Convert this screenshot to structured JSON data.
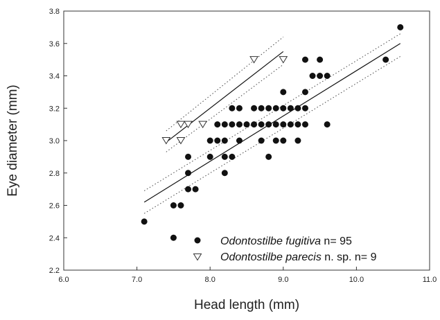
{
  "chart_data": {
    "type": "scatter",
    "title": "",
    "xlabel": "Head length (mm)",
    "ylabel": "Eye diameter (mm)",
    "xlim": [
      6.0,
      11.0
    ],
    "ylim": [
      2.2,
      3.8
    ],
    "x_ticks": [
      "6.0",
      "7.0",
      "8.0",
      "9.0",
      "10.0",
      "11.0"
    ],
    "y_ticks": [
      "2.2",
      "2.4",
      "2.6",
      "2.8",
      "3.0",
      "3.2",
      "3.4",
      "3.6",
      "3.8"
    ],
    "grid": false,
    "legend_position": "bottom-right",
    "series": [
      {
        "name_italic": "Odontostilbe fugitiva",
        "name_suffix": " n= 95",
        "marker": "filled-circle",
        "color": "#111111",
        "points": [
          [
            7.1,
            2.5
          ],
          [
            7.5,
            2.4
          ],
          [
            7.5,
            2.6
          ],
          [
            7.6,
            2.6
          ],
          [
            7.7,
            2.7
          ],
          [
            7.7,
            2.8
          ],
          [
            7.7,
            2.9
          ],
          [
            7.8,
            2.7
          ],
          [
            8.0,
            2.9
          ],
          [
            8.0,
            3.0
          ],
          [
            8.1,
            3.0
          ],
          [
            8.1,
            3.1
          ],
          [
            8.2,
            2.8
          ],
          [
            8.2,
            2.9
          ],
          [
            8.2,
            3.0
          ],
          [
            8.2,
            3.1
          ],
          [
            8.3,
            2.9
          ],
          [
            8.3,
            3.1
          ],
          [
            8.3,
            3.2
          ],
          [
            8.4,
            3.0
          ],
          [
            8.4,
            3.1
          ],
          [
            8.4,
            3.2
          ],
          [
            8.5,
            3.1
          ],
          [
            8.6,
            3.1
          ],
          [
            8.6,
            3.2
          ],
          [
            8.7,
            3.0
          ],
          [
            8.7,
            3.1
          ],
          [
            8.7,
            3.2
          ],
          [
            8.8,
            2.9
          ],
          [
            8.8,
            3.1
          ],
          [
            8.8,
            3.2
          ],
          [
            8.9,
            3.0
          ],
          [
            8.9,
            3.1
          ],
          [
            8.9,
            3.2
          ],
          [
            9.0,
            3.0
          ],
          [
            9.0,
            3.1
          ],
          [
            9.0,
            3.2
          ],
          [
            9.0,
            3.3
          ],
          [
            9.1,
            3.1
          ],
          [
            9.1,
            3.2
          ],
          [
            9.2,
            3.0
          ],
          [
            9.2,
            3.1
          ],
          [
            9.2,
            3.2
          ],
          [
            9.3,
            3.1
          ],
          [
            9.3,
            3.2
          ],
          [
            9.3,
            3.3
          ],
          [
            9.3,
            3.5
          ],
          [
            9.4,
            3.4
          ],
          [
            9.5,
            3.4
          ],
          [
            9.5,
            3.5
          ],
          [
            9.6,
            3.1
          ],
          [
            9.6,
            3.4
          ],
          [
            10.4,
            3.5
          ],
          [
            10.6,
            3.7
          ]
        ],
        "fit": [
          [
            7.1,
            2.62
          ],
          [
            10.6,
            3.6
          ]
        ],
        "ci_upper": [
          [
            7.1,
            2.69
          ],
          [
            10.6,
            3.66
          ]
        ],
        "ci_lower": [
          [
            7.1,
            2.55
          ],
          [
            10.6,
            3.52
          ]
        ]
      },
      {
        "name_italic": "Odontostilbe parecis",
        "name_suffix": " n. sp. n= 9",
        "marker": "open-triangle-down",
        "color": "#111111",
        "points": [
          [
            7.4,
            3.0
          ],
          [
            7.6,
            3.0
          ],
          [
            7.6,
            3.1
          ],
          [
            7.7,
            3.1
          ],
          [
            7.9,
            3.1
          ],
          [
            8.6,
            3.5
          ],
          [
            9.0,
            3.5
          ]
        ],
        "fit": [
          [
            7.4,
            2.99
          ],
          [
            9.0,
            3.55
          ]
        ],
        "ci_upper": [
          [
            7.4,
            3.06
          ],
          [
            9.0,
            3.64
          ]
        ],
        "ci_lower": [
          [
            7.4,
            2.93
          ],
          [
            9.0,
            3.47
          ]
        ]
      }
    ]
  }
}
